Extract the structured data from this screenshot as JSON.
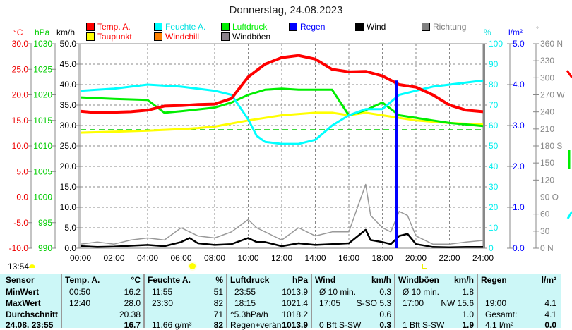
{
  "title": "Donnerstag, 24.08.2023",
  "legend": [
    {
      "label": "Temp. A.",
      "color": "#ff0000"
    },
    {
      "label": "Feuchte A.",
      "color": "#00ffff",
      "text": "#00e0e0"
    },
    {
      "label": "Luftdruck",
      "color": "#00ee00"
    },
    {
      "label": "Regen",
      "color": "#0000ff"
    },
    {
      "label": "Wind",
      "color": "#000000"
    },
    {
      "label": "Richtung",
      "color": "#808080"
    },
    {
      "label": "Taupunkt",
      "color": "#ffff00",
      "text": "#ff0000"
    },
    {
      "label": "Windchill",
      "color": "#ff8000",
      "text": "#ff0000"
    },
    {
      "label": "Windböen",
      "color": "#888088",
      "text": "#000000"
    }
  ],
  "axes": {
    "c_unit": "°C",
    "hpa_unit": "hPa",
    "kmh_unit": "km/h",
    "pct_unit": "%",
    "rain_unit": "l/m²",
    "deg_unit": "°",
    "c_ticks": [
      "30.0",
      "25.0",
      "20.0",
      "15.0",
      "10.0",
      "5.0",
      "0.0",
      "-5.0",
      "-10.0"
    ],
    "hpa_ticks": [
      "1030",
      "1025",
      "1020",
      "1015",
      "1010",
      "1005",
      "1000",
      "995",
      "990"
    ],
    "kmh_ticks": [
      "50.0",
      "45.0",
      "40.0",
      "35.0",
      "30.0",
      "25.0",
      "20.0",
      "15.0",
      "10.0",
      "5.0",
      "0.0"
    ],
    "pct_ticks": [
      "100",
      "90",
      "80",
      "70",
      "60",
      "50",
      "40",
      "30",
      "20",
      "10",
      "0"
    ],
    "rain_ticks": [
      "5.0",
      "4.0",
      "3.0",
      "2.0",
      "1.0",
      "0.0"
    ],
    "deg_ticks": [
      "360 N",
      "330",
      "300",
      "270 W",
      "240",
      "210",
      "180 S",
      "150",
      "120",
      "90  O",
      "60",
      "30",
      "0   N"
    ],
    "time_ticks": [
      "00:00",
      "02:00",
      "04:00",
      "06:00",
      "08:00",
      "10:00",
      "12:00",
      "14:00",
      "16:00",
      "18:00",
      "20:00",
      "22:00",
      "24:00"
    ]
  },
  "chart_data": {
    "type": "line",
    "title": "Donnerstag, 24.08.2023",
    "xlabel": "Uhrzeit",
    "x_range": [
      0,
      24
    ],
    "series": [
      {
        "name": "Temp. A.",
        "unit": "°C",
        "range": [
          -10,
          30
        ],
        "x": [
          0,
          1,
          2,
          3,
          4,
          5,
          6,
          7,
          8,
          9,
          10,
          11,
          12,
          13,
          14,
          15,
          16,
          17,
          18,
          19,
          20,
          21,
          22,
          23,
          24
        ],
        "values": [
          16.8,
          16.5,
          16.6,
          16.7,
          17,
          17.8,
          17.9,
          18.1,
          18.2,
          19.3,
          23.5,
          26,
          27.3,
          27.7,
          27.0,
          25,
          24.5,
          24.6,
          23.7,
          22,
          21.5,
          20,
          18,
          17,
          16.7
        ]
      },
      {
        "name": "Feuchte A.",
        "unit": "%",
        "range": [
          0,
          100
        ],
        "x": [
          0,
          2,
          4,
          6,
          8,
          9,
          10,
          10.5,
          11,
          12,
          13,
          14,
          15,
          16,
          17,
          18,
          19,
          20,
          21,
          22,
          23,
          24
        ],
        "values": [
          77,
          78,
          80,
          79,
          77,
          75,
          63,
          55,
          52,
          51,
          51,
          53,
          60,
          65,
          68,
          68,
          75,
          77,
          79,
          80,
          81,
          82
        ]
      },
      {
        "name": "Luftdruck",
        "unit": "hPa",
        "range": [
          990,
          1030
        ],
        "x": [
          0,
          2,
          4,
          5,
          6,
          8,
          9,
          10,
          11,
          12,
          13,
          14,
          15,
          16,
          17,
          18,
          19,
          20,
          21,
          22,
          23,
          24
        ],
        "values": [
          1019.5,
          1019.2,
          1019,
          1016.5,
          1016.8,
          1017.5,
          1018.5,
          1020,
          1021,
          1021.2,
          1021,
          1021,
          1021,
          1016,
          1017,
          1018.5,
          1016,
          1015.5,
          1015,
          1014.5,
          1014.2,
          1013.9
        ]
      },
      {
        "name": "Taupunkt",
        "unit": "°C",
        "range": [
          -10,
          30
        ],
        "x": [
          0,
          2,
          4,
          6,
          7,
          8,
          10,
          12,
          14,
          15,
          16,
          17,
          18,
          19,
          20,
          22,
          24
        ],
        "values": [
          12.6,
          12.8,
          13,
          13.3,
          13.5,
          13.8,
          15,
          16,
          16.5,
          16.5,
          16,
          16.5,
          16,
          15.5,
          15,
          14.5,
          14.2
        ]
      },
      {
        "name": "Wind",
        "unit": "km/h",
        "range": [
          0,
          50
        ],
        "x": [
          0,
          1,
          2,
          3,
          4,
          5,
          6,
          6.5,
          7,
          8,
          9,
          10,
          10.5,
          11,
          12,
          13,
          14,
          15,
          16,
          17,
          17.3,
          18,
          18.5,
          19,
          19.5,
          20,
          21,
          22,
          23,
          24
        ],
        "values": [
          0.5,
          0.3,
          0.4,
          0.6,
          0.8,
          0.5,
          1.5,
          2.5,
          1.2,
          0.8,
          1,
          2.5,
          1.5,
          1.5,
          0.5,
          1.2,
          0.8,
          1,
          1.2,
          4.5,
          2,
          1.5,
          1,
          3,
          3.5,
          1,
          0.3,
          0.2,
          0.3,
          0.3
        ]
      },
      {
        "name": "Windböen",
        "unit": "km/h",
        "range": [
          0,
          50
        ],
        "x": [
          0,
          1,
          2,
          3,
          4,
          5,
          6,
          6.5,
          7,
          8,
          9,
          10,
          10.5,
          11,
          12,
          13,
          14,
          15,
          16,
          17,
          17.3,
          18,
          18.5,
          19,
          19.5,
          20,
          21,
          22,
          23,
          24
        ],
        "values": [
          1,
          1.5,
          1,
          2,
          2.5,
          2,
          5,
          4,
          3,
          2.5,
          4,
          7,
          5,
          4,
          2,
          5,
          3,
          4,
          4,
          15.6,
          8,
          5,
          4,
          9,
          8,
          3,
          1,
          1,
          1.5,
          1.9
        ]
      },
      {
        "name": "Regen",
        "unit": "l/m²",
        "range": [
          0,
          5
        ],
        "x": [
          18.83
        ],
        "values": [
          4.1
        ]
      }
    ],
    "reference_line": {
      "unit": "hPa",
      "value": 1013.2
    }
  },
  "status": {
    "time": "13:54"
  },
  "table": {
    "headers": [
      [
        "Sensor",
        ""
      ],
      [
        "Temp. A.",
        "°C"
      ],
      [
        "Feuchte A.",
        "%"
      ],
      [
        "Luftdruck",
        "hPa"
      ],
      [
        "Wind",
        "km/h"
      ],
      [
        "Windböen",
        "km/h"
      ],
      [
        "Regen",
        "l/m²"
      ]
    ],
    "rows": [
      [
        [
          "MinWert",
          ""
        ],
        [
          "00:50",
          "16.2"
        ],
        [
          "11:55",
          "51"
        ],
        [
          "23:55",
          "1013.9"
        ],
        [
          "Ø 10 min.",
          "0.3"
        ],
        [
          "Ø 10 min.",
          "1.8"
        ],
        [
          "",
          ""
        ]
      ],
      [
        [
          "MaxWert",
          ""
        ],
        [
          "12:40",
          "28.0"
        ],
        [
          "23:30",
          "82"
        ],
        [
          "18:15",
          "1021.4"
        ],
        [
          "17:05",
          "S-SO 5.3"
        ],
        [
          "17:00",
          "NW 15.6"
        ],
        [
          "19:00",
          "4.1"
        ]
      ],
      [
        [
          "Durchschnitt",
          ""
        ],
        [
          "",
          "20.38"
        ],
        [
          "",
          "71"
        ],
        [
          "^5.3hPa/h",
          "1018.2"
        ],
        [
          "",
          "0.6"
        ],
        [
          "",
          "1.0"
        ],
        [
          "Gesamt:",
          "4.1"
        ]
      ],
      [
        [
          "24.08. 23:55",
          ""
        ],
        [
          "",
          "16.7"
        ],
        [
          "11.66 g/m³",
          "82"
        ],
        [
          "Regen+verän",
          "1013.9"
        ],
        [
          "0 Bft S-SW",
          "0.3"
        ],
        [
          "1 Bft S-SW",
          "1.9"
        ],
        [
          "4.1 l/m²",
          "0.0"
        ]
      ]
    ]
  }
}
